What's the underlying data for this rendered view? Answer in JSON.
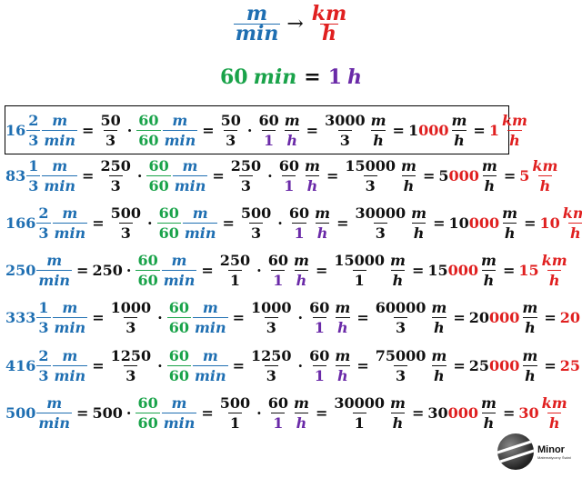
{
  "header": {
    "unit_num": "m",
    "unit_den": "min",
    "arrow": "→",
    "target_num": "km",
    "target_den": "h",
    "eq_left": "60",
    "eq_left_unit": "min",
    "eq_sign": "=",
    "eq_right": "1",
    "eq_right_unit": "h"
  },
  "symbols": {
    "eq": "=",
    "dot": "·",
    "m": "m",
    "min": "min",
    "km": "km",
    "h": "h",
    "sixty": "60",
    "one": "1"
  },
  "rows": [
    {
      "whole": "16",
      "num": "2",
      "den": "3",
      "a_num": "50",
      "a_den": "3",
      "b_num": "3000",
      "b_den": "3",
      "res_black": "1",
      "res_red": "000",
      "final": "1"
    },
    {
      "whole": "83",
      "num": "1",
      "den": "3",
      "a_num": "250",
      "a_den": "3",
      "b_num": "15000",
      "b_den": "3",
      "res_black": "5",
      "res_red": "000",
      "final": "5"
    },
    {
      "whole": "166",
      "num": "2",
      "den": "3",
      "a_num": "500",
      "a_den": "3",
      "b_num": "30000",
      "b_den": "3",
      "res_black": "10",
      "res_red": "000",
      "final": "10"
    },
    {
      "whole": "250",
      "mult": "250",
      "a_num": "250",
      "a_den": "1",
      "b_num": "15000",
      "b_den": "1",
      "res_black": "15",
      "res_red": "000",
      "final": "15"
    },
    {
      "whole": "333",
      "num": "1",
      "den": "3",
      "a_num": "1000",
      "a_den": "3",
      "b_num": "60000",
      "b_den": "3",
      "res_black": "20",
      "res_red": "000",
      "final": "20"
    },
    {
      "whole": "416",
      "num": "2",
      "den": "3",
      "a_num": "1250",
      "a_den": "3",
      "b_num": "75000",
      "b_den": "3",
      "res_black": "25",
      "res_red": "000",
      "final": "25"
    },
    {
      "whole": "500",
      "mult": "500",
      "a_num": "500",
      "a_den": "1",
      "b_num": "30000",
      "b_den": "1",
      "res_black": "30",
      "res_red": "000",
      "final": "30"
    }
  ],
  "logo": {
    "name": "Minor",
    "tagline": "Matematyczny Świat"
  },
  "colors": {
    "blue": "#1f6fb2",
    "green": "#1aa34a",
    "purple": "#6a2aa8",
    "red": "#e02020"
  }
}
